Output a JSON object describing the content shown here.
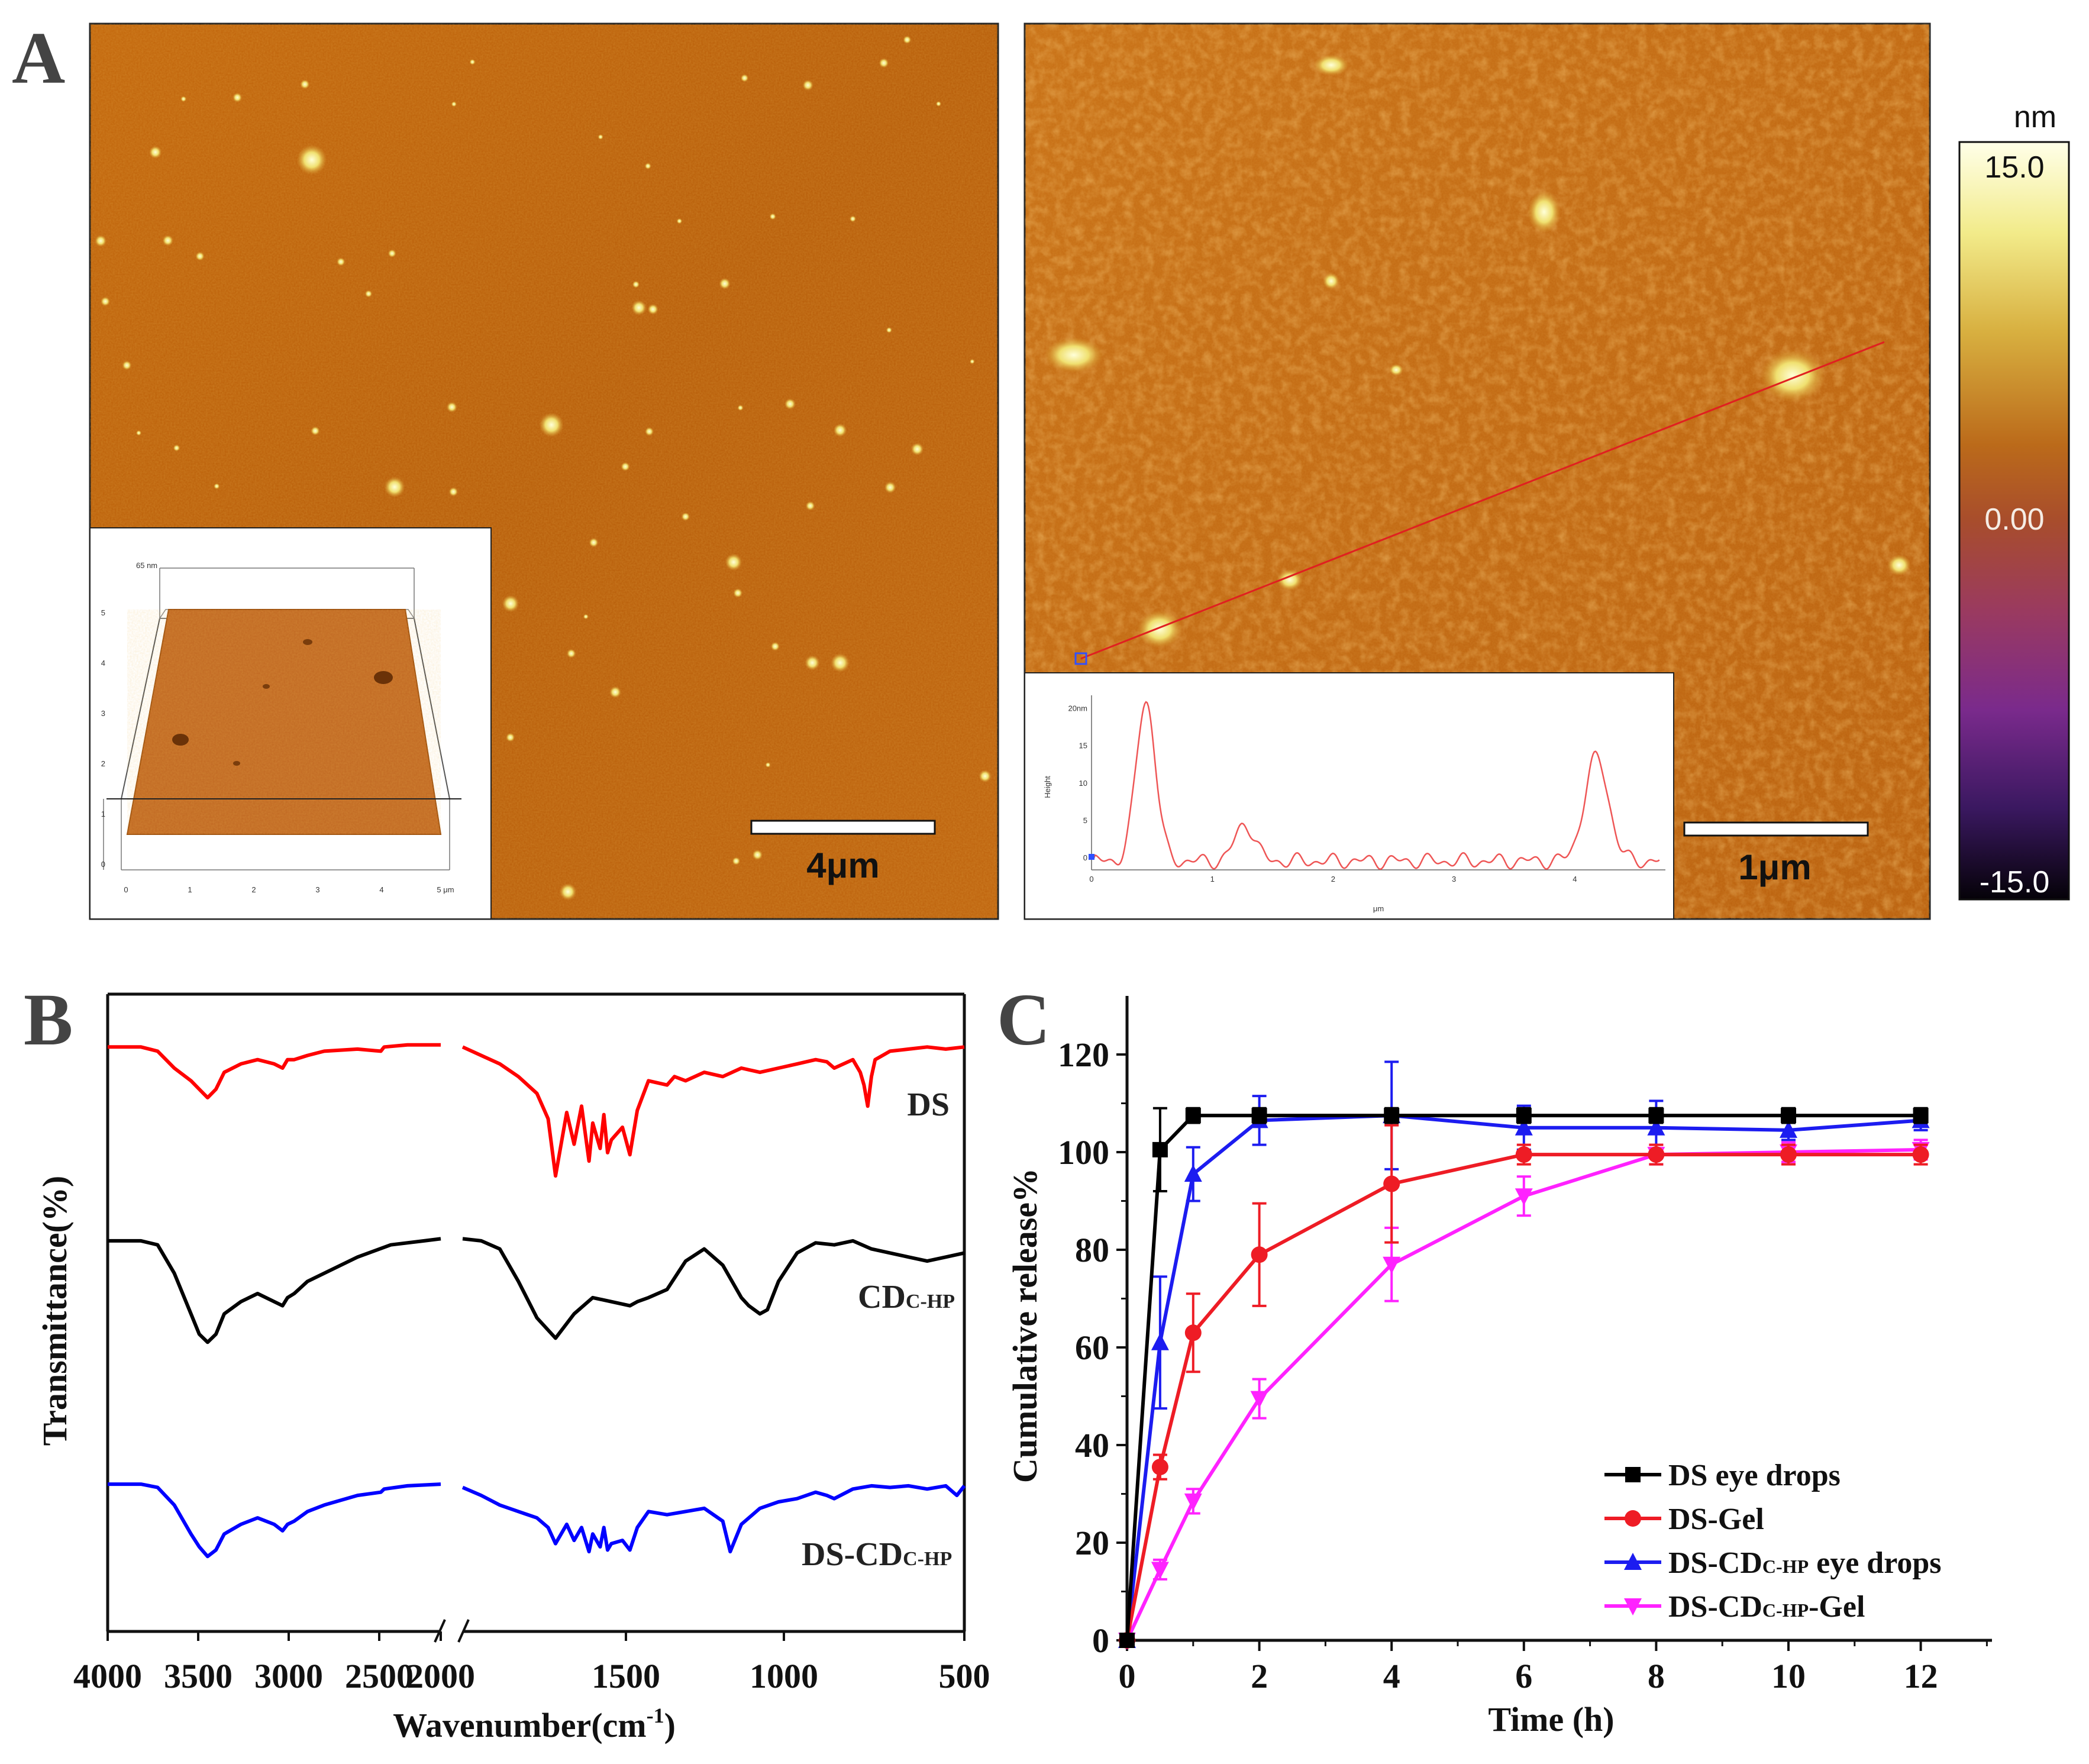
{
  "panels": {
    "A": {
      "letter": "A",
      "left_scale": "4μm",
      "right_scale": "1μm",
      "colorbar": {
        "unit": "nm",
        "max": "15.0",
        "mid": "0.00",
        "min": "-15.0"
      },
      "inset3d": {
        "z_label": "65 nm",
        "x_ticks": [
          "0",
          "1",
          "2",
          "3",
          "4",
          "5 μm"
        ],
        "z_ticks": [
          "0",
          "1",
          "2",
          "3",
          "4",
          "5"
        ]
      },
      "profile": {
        "y_title": "Height",
        "x_title": "μm",
        "y_ticks": [
          "20nm",
          "15",
          "10",
          "5",
          "0"
        ],
        "x_ticks": [
          "0",
          "1",
          "2",
          "3",
          "4"
        ],
        "color": "#ee5555"
      }
    },
    "B": {
      "letter": "B",
      "ylabel": "Transmittance(%)",
      "xlabel": "Wavenumber(cm",
      "xlabel_sup": "-1",
      "xlabel_end": ")",
      "x_ticks": [
        "4000",
        "3500",
        "3000",
        "2500",
        "2000",
        "1500",
        "1000",
        "500"
      ],
      "labels": {
        "ds": "DS",
        "cd_main": "CD",
        "cd_sub": "C-HP",
        "dscd_main": "DS-CD",
        "dscd_sub": "C-HP"
      }
    },
    "C": {
      "letter": "C",
      "ylabel": "Cumulative release%",
      "xlabel": "Time (h)",
      "legend": [
        {
          "main": "DS eye drops",
          "sub": "",
          "tail": ""
        },
        {
          "main": "DS-Gel",
          "sub": "",
          "tail": ""
        },
        {
          "main": "DS-CD",
          "sub": "C-HP",
          "tail": " eye drops"
        },
        {
          "main": "DS-CD",
          "sub": "C-HP",
          "tail": "-Gel"
        }
      ]
    }
  },
  "chart_data": [
    {
      "type": "line",
      "panel": "C",
      "title": "",
      "xlabel": "Time (h)",
      "ylabel": "Cumulative release%",
      "xlim": [
        0,
        12.7
      ],
      "ylim": [
        0,
        125
      ],
      "xticks": [
        0,
        2,
        4,
        6,
        8,
        10,
        12
      ],
      "yticks": [
        0,
        20,
        40,
        60,
        80,
        100,
        120
      ],
      "legend_position": "bottom-right",
      "series": [
        {
          "name": "DS eye drops",
          "color": "#000000",
          "marker": "square",
          "x": [
            0,
            0.5,
            1,
            2,
            4,
            6,
            8,
            10,
            12
          ],
          "y": [
            0,
            100.5,
            107.5,
            107.5,
            107.5,
            107.5,
            107.5,
            107.5,
            107.5
          ],
          "err": [
            0,
            8.5,
            1.5,
            1.5,
            1.5,
            1.5,
            1.5,
            1.5,
            1.5
          ]
        },
        {
          "name": "DS-Gel",
          "color": "#ee1c25",
          "marker": "circle",
          "x": [
            0,
            0.5,
            1,
            2,
            4,
            6,
            8,
            10,
            12
          ],
          "y": [
            0,
            35.5,
            63,
            79,
            93.5,
            99.5,
            99.5,
            99.5,
            99.5
          ],
          "err": [
            0,
            2.5,
            8,
            10.5,
            12,
            2,
            2,
            2,
            2
          ]
        },
        {
          "name": "DS-CDC-HP eye drops",
          "color": "#1c1cf0",
          "marker": "triangle-up",
          "x": [
            0,
            0.5,
            1,
            2,
            4,
            6,
            8,
            10,
            12
          ],
          "y": [
            0,
            61,
            95.5,
            106.5,
            107.5,
            105,
            105,
            104.5,
            106.5
          ],
          "err": [
            0,
            13.5,
            5.5,
            5,
            11,
            4.5,
            5.5,
            2,
            2
          ]
        },
        {
          "name": "DS-CDC-HP-Gel",
          "color": "#ff22ff",
          "marker": "triangle-down",
          "x": [
            0,
            0.5,
            1,
            2,
            4,
            6,
            8,
            10,
            12
          ],
          "y": [
            0,
            14.5,
            28.5,
            49.5,
            77,
            91,
            99.5,
            100,
            100.5
          ],
          "err": [
            0,
            2,
            2.5,
            4,
            7.5,
            4,
            2,
            2,
            2
          ]
        }
      ]
    },
    {
      "type": "line",
      "panel": "B",
      "title": "",
      "xlabel": "Wavenumber(cm-1)",
      "ylabel": "Transmittance(%)",
      "xlim": [
        4000,
        500
      ],
      "axis_break": [
        2000,
        1850
      ],
      "xticks": [
        4000,
        3500,
        3000,
        2500,
        2000,
        1500,
        1000,
        500
      ],
      "series": [
        {
          "name": "DS",
          "color": "#ff0000",
          "x": [
            4000,
            3800,
            3700,
            3600,
            3500,
            3450,
            3400,
            3350,
            3300,
            3200,
            3100,
            3000,
            2950,
            2920,
            2880,
            2800,
            2700,
            2500,
            2360,
            2340,
            2200,
            2000,
            1850,
            1800,
            1750,
            1700,
            1650,
            1620,
            1600,
            1580,
            1570,
            1550,
            1530,
            1510,
            1500,
            1480,
            1470,
            1460,
            1450,
            1420,
            1400,
            1380,
            1350,
            1300,
            1280,
            1250,
            1200,
            1150,
            1100,
            1050,
            1000,
            950,
            900,
            870,
            850,
            800,
            780,
            770,
            760,
            750,
            740,
            720,
            700,
            650,
            600,
            550,
            500
          ],
          "y": [
            96,
            96,
            94,
            86,
            80,
            76,
            72,
            76,
            84,
            88,
            90,
            88,
            86,
            90,
            90,
            92,
            94,
            95,
            94,
            96,
            97,
            97,
            96,
            92,
            88,
            82,
            74,
            62,
            35,
            55,
            65,
            50,
            68,
            42,
            60,
            48,
            64,
            46,
            52,
            58,
            45,
            66,
            80,
            78,
            82,
            80,
            84,
            82,
            86,
            84,
            86,
            88,
            90,
            89,
            86,
            90,
            84,
            78,
            68,
            82,
            90,
            92,
            94,
            95,
            96,
            95,
            96
          ]
        },
        {
          "name": "CDC-HP",
          "color": "#000000",
          "x": [
            4000,
            3800,
            3700,
            3600,
            3500,
            3450,
            3400,
            3350,
            3300,
            3200,
            3100,
            3000,
            2950,
            2920,
            2880,
            2800,
            2700,
            2500,
            2300,
            2100,
            2000,
            1850,
            1800,
            1750,
            1700,
            1650,
            1600,
            1550,
            1500,
            1450,
            1400,
            1380,
            1350,
            1300,
            1250,
            1200,
            1150,
            1100,
            1080,
            1050,
            1030,
            1000,
            950,
            900,
            850,
            800,
            750,
            700,
            650,
            600,
            550,
            500
          ],
          "y": [
            98,
            98,
            96,
            82,
            62,
            52,
            48,
            52,
            62,
            68,
            72,
            68,
            66,
            70,
            72,
            78,
            82,
            90,
            96,
            98,
            99,
            99,
            98,
            94,
            78,
            60,
            50,
            62,
            70,
            68,
            66,
            68,
            70,
            74,
            88,
            94,
            86,
            70,
            66,
            62,
            64,
            78,
            92,
            97,
            96,
            98,
            94,
            92,
            90,
            88,
            90,
            92
          ]
        },
        {
          "name": "DS-CDC-HP",
          "color": "#0000ff",
          "x": [
            4000,
            3800,
            3700,
            3600,
            3500,
            3450,
            3400,
            3350,
            3300,
            3200,
            3100,
            3000,
            2950,
            2920,
            2880,
            2800,
            2700,
            2500,
            2360,
            2340,
            2200,
            2000,
            1850,
            1800,
            1750,
            1700,
            1650,
            1620,
            1600,
            1580,
            1570,
            1550,
            1530,
            1510,
            1500,
            1480,
            1470,
            1460,
            1450,
            1420,
            1400,
            1380,
            1350,
            1300,
            1250,
            1200,
            1150,
            1130,
            1100,
            1050,
            1000,
            950,
            900,
            870,
            850,
            800,
            750,
            700,
            650,
            600,
            550,
            520,
            500
          ],
          "y": [
            97,
            97,
            95,
            84,
            66,
            58,
            52,
            56,
            66,
            72,
            76,
            72,
            68,
            72,
            74,
            80,
            84,
            90,
            92,
            94,
            96,
            97,
            95,
            90,
            84,
            80,
            76,
            70,
            60,
            68,
            72,
            62,
            70,
            55,
            66,
            58,
            70,
            56,
            60,
            62,
            56,
            70,
            80,
            78,
            80,
            82,
            74,
            55,
            72,
            82,
            86,
            88,
            92,
            90,
            88,
            94,
            96,
            95,
            96,
            94,
            96,
            90,
            96
          ]
        }
      ]
    }
  ]
}
